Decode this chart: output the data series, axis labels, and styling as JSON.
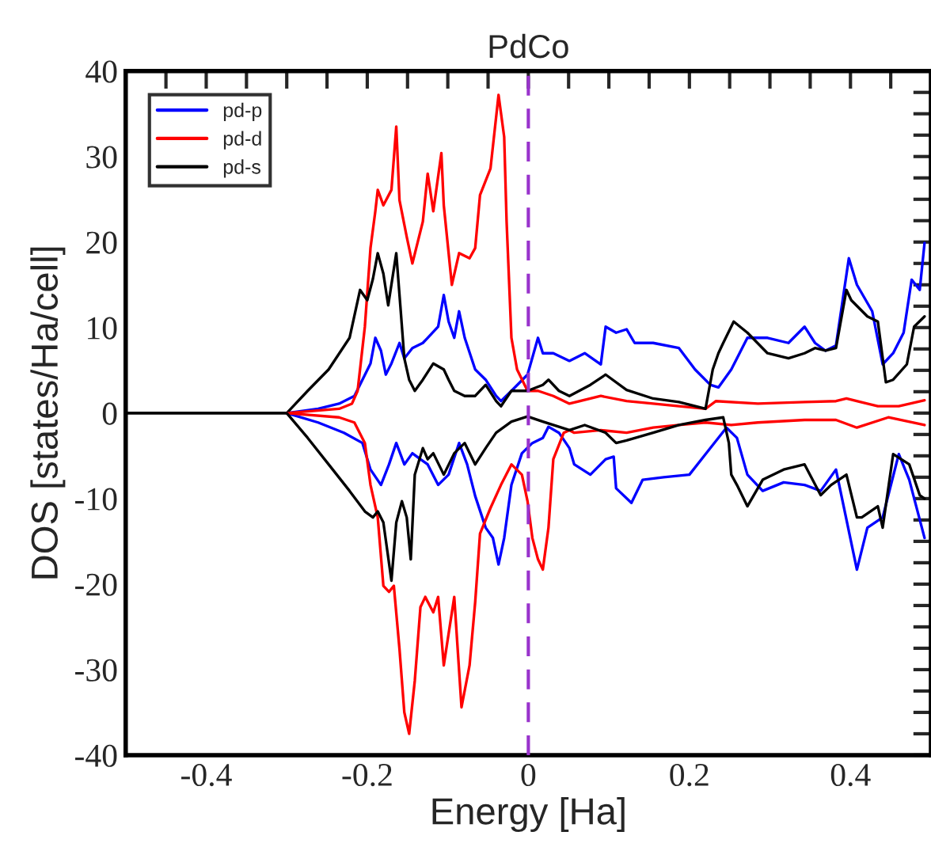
{
  "chart_data": {
    "type": "line",
    "title": "PdCo",
    "xlabel": "Energy [Ha]",
    "ylabel": "DOS [states/Ha/cell]",
    "xlim": [
      -0.5,
      0.5
    ],
    "ylim": [
      -40,
      40
    ],
    "xticks": [
      {
        "value": -0.45,
        "label": null
      },
      {
        "value": -0.4,
        "label": "-0.4"
      },
      {
        "value": -0.35,
        "label": null
      },
      {
        "value": -0.3,
        "label": null
      },
      {
        "value": -0.25,
        "label": null
      },
      {
        "value": -0.2,
        "label": "-0.2"
      },
      {
        "value": -0.15,
        "label": null
      },
      {
        "value": -0.1,
        "label": null
      },
      {
        "value": -0.05,
        "label": null
      },
      0,
      {
        "value": 0.05,
        "label": null
      },
      {
        "value": 0.1,
        "label": null
      },
      {
        "value": 0.15,
        "label": null
      },
      {
        "value": 0.2,
        "label": "0.2"
      },
      {
        "value": 0.25,
        "label": null
      },
      {
        "value": 0.3,
        "label": null
      },
      {
        "value": 0.35,
        "label": null
      },
      {
        "value": 0.4,
        "label": "0.4"
      },
      {
        "value": 0.45,
        "label": null
      }
    ],
    "yticks": [
      -40,
      {
        "value": -37.5,
        "label": null
      },
      {
        "value": -35,
        "label": null
      },
      {
        "value": -32.5,
        "label": null
      },
      -30,
      {
        "value": -27.5,
        "label": null
      },
      {
        "value": -25,
        "label": null
      },
      {
        "value": -22.5,
        "label": null
      },
      -20,
      {
        "value": -17.5,
        "label": null
      },
      {
        "value": -15,
        "label": null
      },
      {
        "value": -12.5,
        "label": null
      },
      -10,
      {
        "value": -7.5,
        "label": null
      },
      {
        "value": -5,
        "label": null
      },
      {
        "value": -2.5,
        "label": null
      },
      0,
      {
        "value": 2.5,
        "label": null
      },
      {
        "value": 5,
        "label": null
      },
      {
        "value": 7.5,
        "label": null
      },
      10,
      {
        "value": 12.5,
        "label": null
      },
      {
        "value": 15,
        "label": null
      },
      {
        "value": 17.5,
        "label": null
      },
      20,
      {
        "value": 22.5,
        "label": null
      },
      {
        "value": 25,
        "label": null
      },
      {
        "value": 27.5,
        "label": null
      },
      30,
      {
        "value": 32.5,
        "label": null
      },
      {
        "value": 35,
        "label": null
      },
      {
        "value": 37.5,
        "label": null
      },
      40
    ],
    "grid": false,
    "legend": "top left",
    "line_style": "solid",
    "ref_lines": [
      {
        "axis": "x",
        "value": 0,
        "color": "#9933cc",
        "line_style": "dashed"
      }
    ],
    "series": [
      {
        "name": "pd-p",
        "color": "#0000ff",
        "x": [
          -0.3,
          -0.261,
          -0.235,
          -0.216,
          -0.206,
          -0.196,
          -0.19,
          -0.183,
          -0.177,
          -0.17,
          -0.16,
          -0.154,
          -0.144,
          -0.131,
          -0.125,
          -0.112,
          -0.105,
          -0.099,
          -0.092,
          -0.086,
          -0.079,
          -0.066,
          -0.053,
          -0.04,
          -0.034,
          -0.021,
          -0.001,
          0.012,
          0.018,
          0.031,
          0.051,
          0.07,
          0.09,
          0.096,
          0.109,
          0.122,
          0.132,
          0.155,
          0.187,
          0.207,
          0.226,
          0.236,
          0.252,
          0.272,
          0.297,
          0.323,
          0.343,
          0.356,
          0.369,
          0.382,
          0.398,
          0.408,
          0.427,
          0.44,
          0.453,
          0.466,
          0.476,
          0.486,
          0.492
        ],
        "values": [
          0,
          0.5,
          1.1,
          2.0,
          3.9,
          5.8,
          8.8,
          7.3,
          4.5,
          5.8,
          8.2,
          6.4,
          7.6,
          8.2,
          8.8,
          10.1,
          13.8,
          10.7,
          8.8,
          11.9,
          8.8,
          5.1,
          3.9,
          2.0,
          1.4,
          2.6,
          4.5,
          8.8,
          7.0,
          7.0,
          6.1,
          7.0,
          5.7,
          10.1,
          9.4,
          9.8,
          8.2,
          8.2,
          7.6,
          5.1,
          3.3,
          3.0,
          5.1,
          8.8,
          8.8,
          8.2,
          10.1,
          8.2,
          7.3,
          7.9,
          18.1,
          15.0,
          11.9,
          5.7,
          7.0,
          9.4,
          15.6,
          14.4,
          19.9
        ]
      },
      {
        "name": "pd-d",
        "color": "#ff0000",
        "x": [
          -0.3,
          -0.235,
          -0.219,
          -0.212,
          -0.203,
          -0.196,
          -0.19,
          -0.187,
          -0.18,
          -0.17,
          -0.164,
          -0.16,
          -0.151,
          -0.144,
          -0.131,
          -0.125,
          -0.118,
          -0.108,
          -0.105,
          -0.095,
          -0.086,
          -0.073,
          -0.066,
          -0.06,
          -0.047,
          -0.037,
          -0.03,
          -0.027,
          -0.021,
          -0.014,
          -0.001,
          0.012,
          0.031,
          0.051,
          0.09,
          0.122,
          0.155,
          0.187,
          0.22,
          0.233,
          0.285,
          0.343,
          0.382,
          0.395,
          0.434,
          0.46,
          0.492
        ],
        "values": [
          0,
          0.5,
          1.1,
          2.6,
          10.1,
          19.3,
          23.6,
          26.1,
          24.3,
          26.1,
          33.5,
          24.9,
          20.6,
          17.5,
          22.4,
          28.0,
          23.6,
          30.4,
          24.3,
          15.0,
          18.7,
          18.1,
          19.3,
          25.5,
          28.6,
          37.2,
          32.3,
          22.4,
          8.8,
          5.1,
          2.6,
          2.6,
          2.0,
          1.1,
          2.0,
          1.4,
          1.1,
          0.8,
          0.5,
          1.4,
          1.1,
          1.3,
          1.4,
          1.7,
          0.8,
          0.8,
          1.5
        ]
      },
      {
        "name": "pd-s",
        "color": "#000000",
        "x": [
          -0.5,
          -0.3,
          -0.274,
          -0.248,
          -0.222,
          -0.209,
          -0.2,
          -0.193,
          -0.187,
          -0.18,
          -0.174,
          -0.164,
          -0.159,
          -0.154,
          -0.148,
          -0.141,
          -0.131,
          -0.118,
          -0.105,
          -0.099,
          -0.092,
          -0.079,
          -0.066,
          -0.053,
          -0.04,
          -0.034,
          -0.021,
          -0.001,
          0.018,
          0.025,
          0.038,
          0.051,
          0.077,
          0.096,
          0.122,
          0.155,
          0.187,
          0.22,
          0.229,
          0.236,
          0.242,
          0.255,
          0.272,
          0.297,
          0.323,
          0.343,
          0.356,
          0.369,
          0.382,
          0.395,
          0.401,
          0.421,
          0.434,
          0.444,
          0.453,
          0.47,
          0.479,
          0.492
        ],
        "values": [
          0,
          0,
          2.6,
          5.1,
          8.8,
          14.4,
          13.2,
          15.7,
          18.7,
          16.3,
          12.6,
          18.7,
          12.6,
          6.4,
          3.9,
          2.6,
          3.9,
          5.8,
          5.1,
          3.9,
          2.6,
          2.0,
          2.0,
          3.3,
          1.4,
          0.8,
          2.6,
          2.6,
          3.3,
          3.9,
          2.6,
          2.0,
          3.3,
          4.5,
          2.7,
          1.7,
          1.3,
          0.5,
          5.1,
          7.0,
          8.2,
          10.7,
          9.4,
          7.0,
          6.4,
          7.0,
          7.6,
          7.3,
          7.6,
          14.4,
          13.2,
          11.3,
          10.7,
          3.6,
          3.9,
          5.7,
          10.1,
          11.3
        ]
      },
      {
        "color": "#0000ff",
        "x": [
          -0.3,
          -0.261,
          -0.229,
          -0.206,
          -0.196,
          -0.183,
          -0.173,
          -0.164,
          -0.154,
          -0.144,
          -0.134,
          -0.125,
          -0.112,
          -0.099,
          -0.086,
          -0.076,
          -0.066,
          -0.053,
          -0.044,
          -0.037,
          -0.03,
          -0.021,
          -0.008,
          0.005,
          0.018,
          0.025,
          0.038,
          0.051,
          0.057,
          0.077,
          0.096,
          0.106,
          0.109,
          0.128,
          0.142,
          0.168,
          0.2,
          0.22,
          0.246,
          0.259,
          0.272,
          0.291,
          0.317,
          0.343,
          0.363,
          0.382,
          0.408,
          0.421,
          0.44,
          0.46,
          0.473,
          0.492
        ],
        "values": [
          0,
          -1.1,
          -2.3,
          -3.5,
          -6.6,
          -8.4,
          -6.0,
          -3.5,
          -6.0,
          -4.7,
          -5.4,
          -6.0,
          -8.4,
          -7.2,
          -3.5,
          -6.0,
          -9.7,
          -13.4,
          -14.6,
          -17.7,
          -14.6,
          -8.4,
          -4.7,
          -3.5,
          -2.9,
          -1.6,
          -2.3,
          -4.1,
          -6.0,
          -7.2,
          -5.4,
          -5.1,
          -8.8,
          -10.5,
          -7.8,
          -7.5,
          -7.2,
          -4.8,
          -1.7,
          -2.9,
          -7.2,
          -9.1,
          -8.1,
          -8.4,
          -9.1,
          -6.6,
          -18.3,
          -13.4,
          -12.2,
          -4.8,
          -7.8,
          -14.6
        ]
      },
      {
        "color": "#ff0000",
        "x": [
          -0.3,
          -0.235,
          -0.216,
          -0.203,
          -0.196,
          -0.187,
          -0.18,
          -0.173,
          -0.167,
          -0.16,
          -0.154,
          -0.148,
          -0.141,
          -0.134,
          -0.128,
          -0.118,
          -0.112,
          -0.105,
          -0.099,
          -0.092,
          -0.083,
          -0.073,
          -0.066,
          -0.06,
          -0.047,
          -0.034,
          -0.021,
          -0.008,
          -0.001,
          0.005,
          0.012,
          0.018,
          0.025,
          0.031,
          0.044,
          0.051,
          0.057,
          0.09,
          0.122,
          0.155,
          0.187,
          0.22,
          0.252,
          0.285,
          0.343,
          0.382,
          0.408,
          0.447,
          0.492
        ],
        "values": [
          0,
          -0.5,
          -1.1,
          -3.5,
          -8.4,
          -12.2,
          -20.2,
          -20.9,
          -20.2,
          -27.6,
          -35.0,
          -37.5,
          -31.3,
          -22.7,
          -21.5,
          -23.3,
          -21.5,
          -29.5,
          -25.8,
          -21.5,
          -34.4,
          -29.5,
          -22.1,
          -14.1,
          -11.1,
          -8.4,
          -6.0,
          -7.2,
          -10.3,
          -14.6,
          -17.1,
          -18.3,
          -13.4,
          -5.4,
          -2.3,
          -2.0,
          -2.3,
          -2.0,
          -2.3,
          -1.7,
          -1.4,
          -1.1,
          -1.4,
          -1.1,
          -0.8,
          -0.8,
          -1.7,
          -0.5,
          -1.4
        ]
      },
      {
        "color": "#000000",
        "x": [
          -0.5,
          -0.3,
          -0.274,
          -0.248,
          -0.222,
          -0.203,
          -0.193,
          -0.187,
          -0.18,
          -0.17,
          -0.164,
          -0.157,
          -0.151,
          -0.146,
          -0.141,
          -0.131,
          -0.125,
          -0.118,
          -0.105,
          -0.092,
          -0.079,
          -0.066,
          -0.053,
          -0.04,
          -0.021,
          -0.001,
          0.018,
          0.038,
          0.051,
          0.07,
          0.096,
          0.109,
          0.122,
          0.155,
          0.187,
          0.22,
          0.242,
          0.249,
          0.252,
          0.259,
          0.272,
          0.291,
          0.317,
          0.343,
          0.363,
          0.376,
          0.395,
          0.408,
          0.414,
          0.434,
          0.44,
          0.453,
          0.473,
          0.486,
          0.492
        ],
        "values": [
          0,
          0,
          -2.9,
          -6.0,
          -9.1,
          -11.5,
          -12.2,
          -11.5,
          -12.8,
          -19.6,
          -12.8,
          -10.3,
          -12.2,
          -17.1,
          -7.2,
          -4.1,
          -5.4,
          -4.7,
          -7.2,
          -4.7,
          -3.5,
          -6.0,
          -4.1,
          -2.3,
          -1.0,
          -0.4,
          -1.0,
          -1.6,
          -2.0,
          -1.4,
          -2.3,
          -3.5,
          -3.2,
          -2.3,
          -1.4,
          -0.8,
          -0.5,
          -3.5,
          -7.2,
          -8.4,
          -10.9,
          -7.8,
          -6.6,
          -6.0,
          -9.6,
          -8.4,
          -7.2,
          -12.2,
          -12.2,
          -10.9,
          -13.4,
          -4.8,
          -6.0,
          -9.6,
          -10.0
        ]
      }
    ]
  }
}
